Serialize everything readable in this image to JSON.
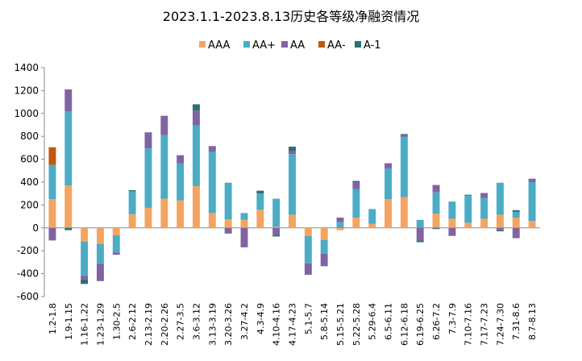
{
  "chart_data": {
    "type": "bar",
    "stacked": true,
    "title": "2023.1.1-2023.8.13历史各等级净融资情况",
    "xlabel": "",
    "ylabel": "",
    "ylim": [
      -600,
      1400
    ],
    "yticks": [
      -600,
      -400,
      -200,
      0,
      200,
      400,
      600,
      800,
      1000,
      1200,
      1400
    ],
    "legend_position": "top",
    "grid": false,
    "categories": [
      "1.2-1.8",
      "1.9-1.15",
      "1.16-1.22",
      "1.23-1.29",
      "1.30-2.5",
      "2.6-2.12",
      "2.13-2.19",
      "2.20-2.26",
      "2.27-3.5",
      "3.6-3.12",
      "3.13-3.19",
      "3.20-3.26",
      "3.27-4.2",
      "4.3-4.9",
      "4.10-4.16",
      "4.17-4.23",
      "5.1-5.7",
      "5.8-5.14",
      "5.15-5.21",
      "5.22-5.28",
      "5.29-6.4",
      "6.5-6.11",
      "6.12-6.18",
      "6.19-6.25",
      "6.26-7.2",
      "7.3-7.9",
      "7.10-7.16",
      "7.17-7.23",
      "7.24-7.30",
      "7.31-8.6",
      "8.7-8.13"
    ],
    "series": [
      {
        "name": "AAA",
        "color": "#F4A460",
        "values": [
          250,
          370,
          -120,
          -140,
          -65,
          120,
          175,
          255,
          240,
          365,
          130,
          75,
          70,
          160,
          10,
          115,
          -70,
          -105,
          -20,
          90,
          35,
          250,
          270,
          0,
          125,
          80,
          45,
          80,
          115,
          90,
          60
        ]
      },
      {
        "name": "AA+",
        "color": "#4BACC6",
        "values": [
          300,
          650,
          -300,
          -175,
          -150,
          200,
          520,
          555,
          325,
          530,
          535,
          320,
          60,
          140,
          245,
          530,
          -240,
          -120,
          50,
          250,
          130,
          270,
          525,
          70,
          185,
          150,
          235,
          180,
          280,
          50,
          340
        ]
      },
      {
        "name": "AA",
        "color": "#8064A2",
        "values": [
          -110,
          190,
          -30,
          -150,
          -20,
          0,
          140,
          170,
          70,
          130,
          50,
          -50,
          -170,
          0,
          -60,
          25,
          -100,
          -110,
          40,
          60,
          0,
          45,
          15,
          -110,
          65,
          -70,
          5,
          45,
          -20,
          -90,
          30
        ]
      },
      {
        "name": "AA-",
        "color": "#C0580F",
        "values": [
          155,
          0,
          0,
          0,
          0,
          0,
          0,
          0,
          0,
          0,
          0,
          0,
          0,
          0,
          0,
          0,
          0,
          0,
          0,
          0,
          0,
          0,
          0,
          0,
          0,
          0,
          0,
          0,
          0,
          0,
          0
        ]
      },
      {
        "name": "A-1",
        "color": "#2E6E70",
        "values": [
          0,
          -20,
          -40,
          0,
          0,
          10,
          0,
          0,
          0,
          55,
          0,
          0,
          0,
          25,
          -15,
          40,
          0,
          0,
          0,
          10,
          0,
          0,
          10,
          -15,
          -10,
          0,
          5,
          0,
          -10,
          15,
          0
        ]
      }
    ]
  }
}
